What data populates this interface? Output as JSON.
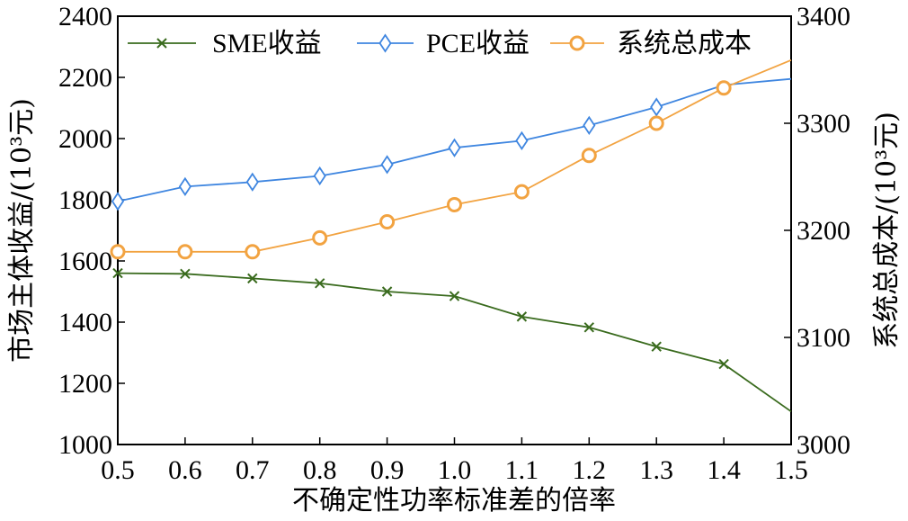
{
  "chart_data": {
    "type": "line",
    "x": [
      0.5,
      0.6,
      0.7,
      0.8,
      0.9,
      1.0,
      1.1,
      1.2,
      1.3,
      1.4,
      1.5
    ],
    "xlabel": "不确定性功率标准差的倍率",
    "ylabel_left": "市场主体收益/(10³元)",
    "ylabel_right": "系统总成本/(10³元)",
    "xlim": [
      0.5,
      1.5
    ],
    "ylim_left": [
      1000,
      2400
    ],
    "ylim_right": [
      3000,
      3400
    ],
    "xticks": [
      "0.5",
      "0.6",
      "0.7",
      "0.8",
      "0.9",
      "1.0",
      "1.1",
      "1.2",
      "1.3",
      "1.4",
      "1.5"
    ],
    "yticks_left": [
      "1000",
      "1200",
      "1400",
      "1600",
      "1800",
      "2000",
      "2200",
      "2400"
    ],
    "yticks_right": [
      "3000",
      "3100",
      "3200",
      "3300",
      "3400"
    ],
    "legend_position": "top",
    "series": [
      {
        "name": "SME收益",
        "axis": "left",
        "color": "#3a6b1e",
        "marker": "x",
        "values": [
          1560,
          1558,
          1543,
          1527,
          1500,
          1485,
          1418,
          1383,
          1320,
          1263,
          1108
        ],
        "marked": [
          true,
          true,
          true,
          true,
          true,
          true,
          true,
          true,
          true,
          true,
          false
        ]
      },
      {
        "name": "PCE收益",
        "axis": "left",
        "color": "#3f86e0",
        "marker": "diamond",
        "values": [
          1795,
          1843,
          1858,
          1878,
          1915,
          1970,
          1993,
          2043,
          2103,
          2175,
          2195
        ],
        "marked": [
          true,
          true,
          true,
          true,
          true,
          true,
          true,
          true,
          true,
          false,
          false
        ]
      },
      {
        "name": "系统总成本",
        "axis": "right",
        "color": "#f2a341",
        "marker": "circle",
        "values": [
          3180,
          3180,
          3180,
          3193,
          3208,
          3224,
          3236,
          3270,
          3300,
          3333,
          3359
        ],
        "marked": [
          true,
          true,
          true,
          true,
          true,
          true,
          true,
          true,
          true,
          true,
          false
        ]
      }
    ]
  }
}
